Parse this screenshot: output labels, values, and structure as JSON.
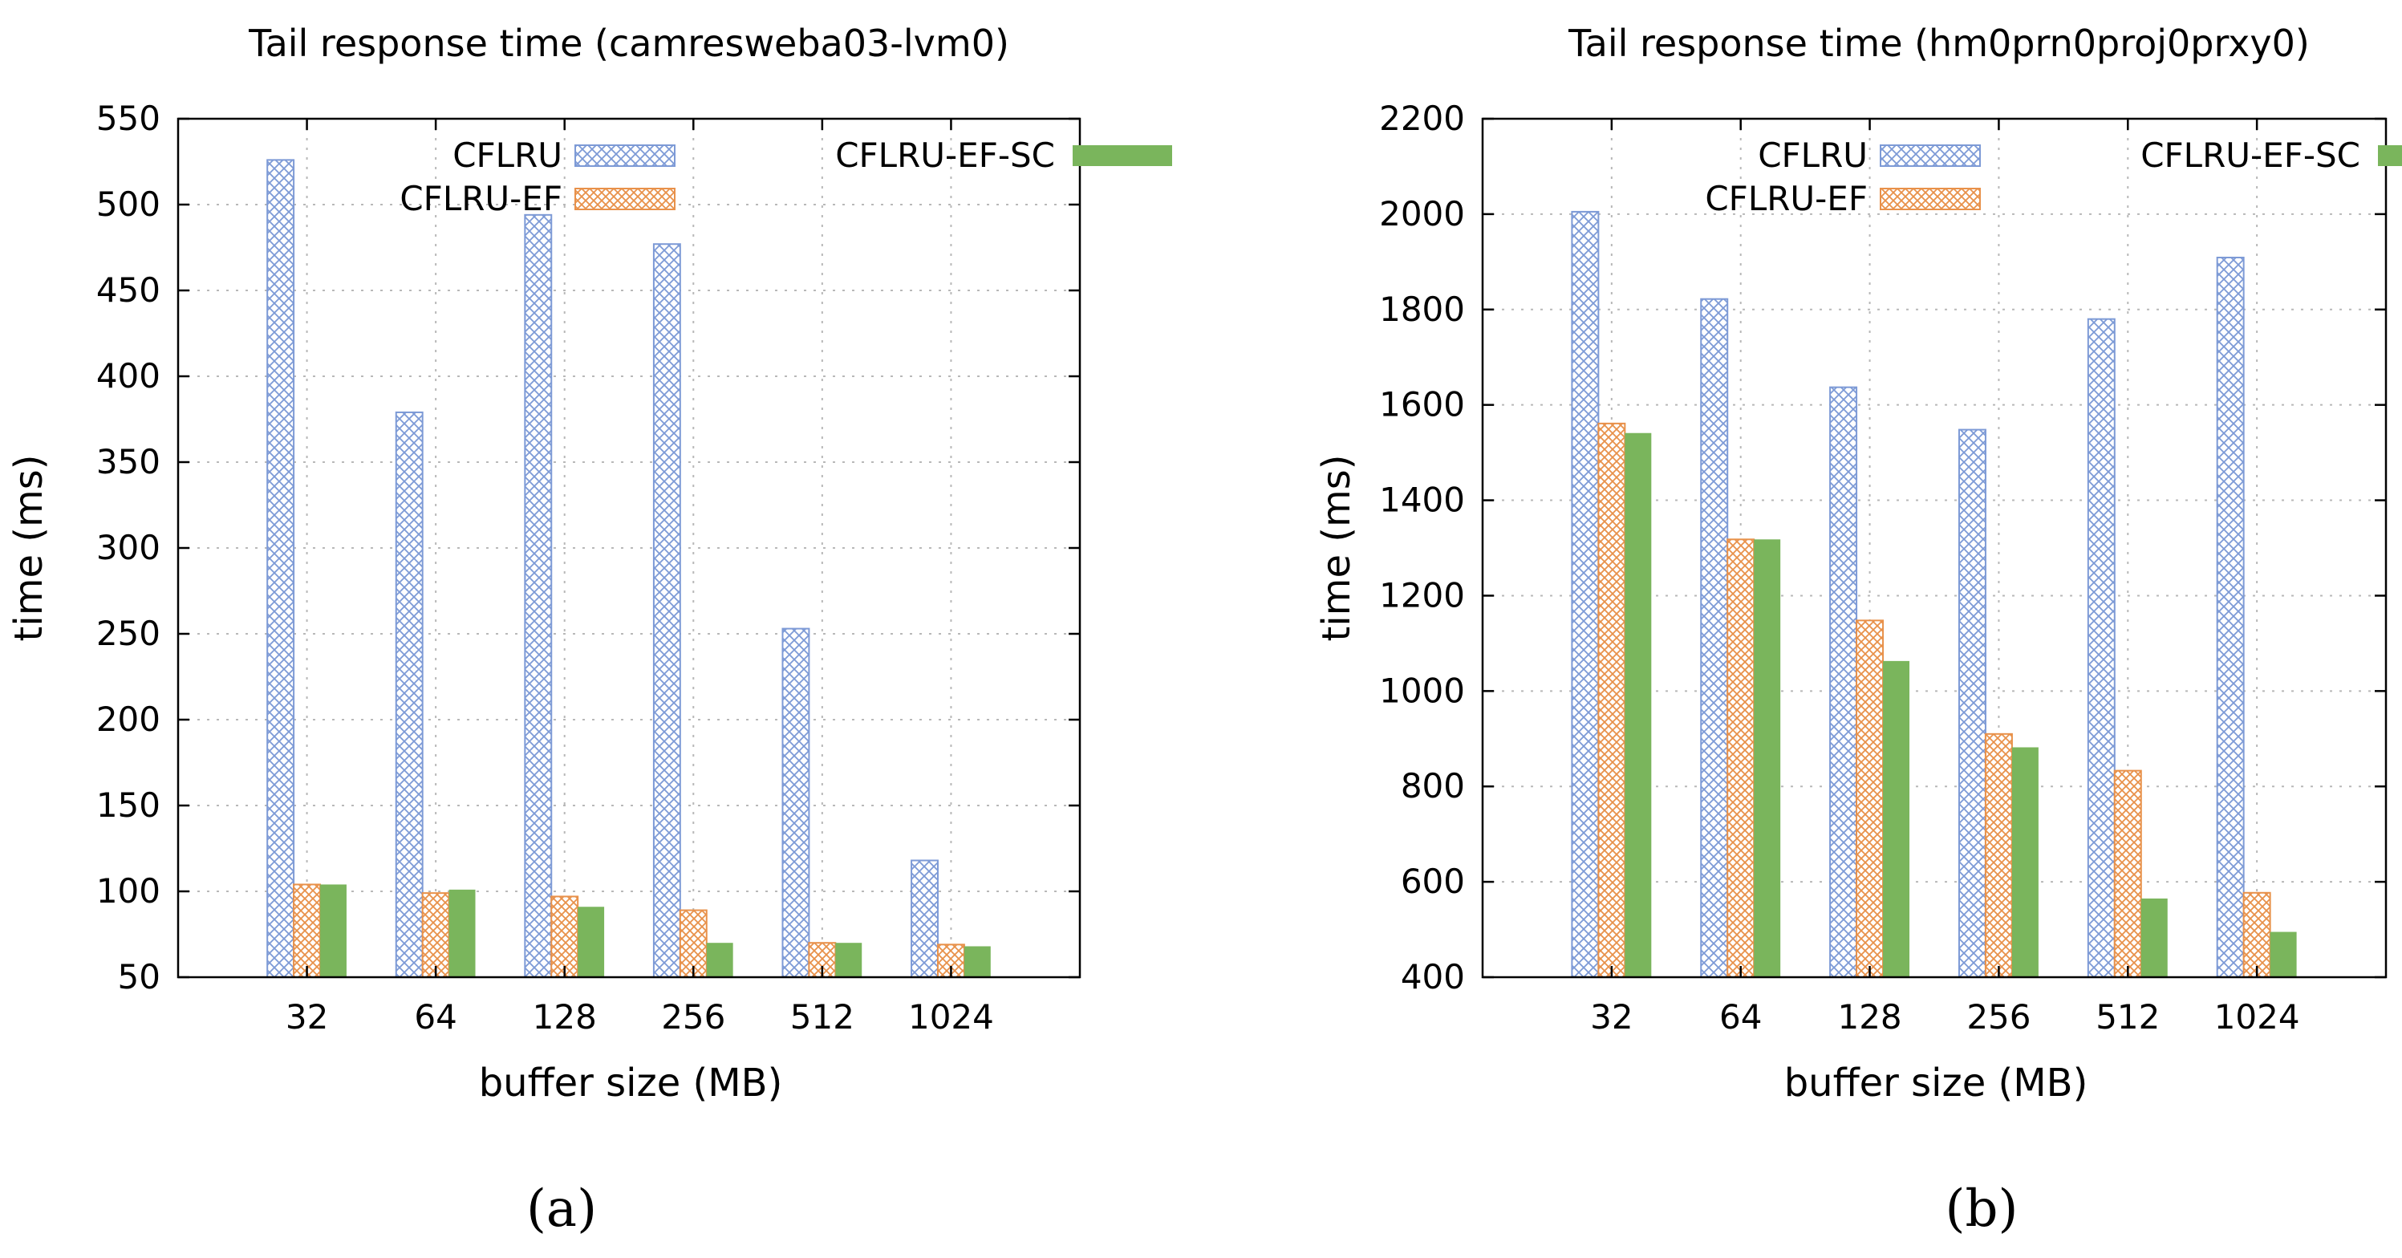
{
  "colors": {
    "CFLRU": "#7d9ad6",
    "CFLRU-EF": "#e8914a",
    "CFLRU-EF-SC": "#7ab55c"
  },
  "chart_data": [
    {
      "type": "bar",
      "title": "Tail response time (camresweba03-lvm0)",
      "xlabel": "buffer size (MB)",
      "ylabel": "time (ms)",
      "panel_label": "(a)",
      "categories": [
        "32",
        "64",
        "128",
        "256",
        "512",
        "1024"
      ],
      "ylim": [
        50,
        550
      ],
      "yticks": [
        50,
        100,
        150,
        200,
        250,
        300,
        350,
        400,
        450,
        500,
        550
      ],
      "grid": true,
      "legend_position": "top",
      "legend": [
        {
          "label": "CFLRU",
          "series": 0
        },
        {
          "label": "CFLRU-EF-SC",
          "series": 2
        },
        {
          "label": "CFLRU-EF",
          "series": 1
        }
      ],
      "series": [
        {
          "name": "CFLRU",
          "pattern": "crosshatch",
          "values": [
            526,
            379,
            494,
            477,
            253,
            118
          ]
        },
        {
          "name": "CFLRU-EF",
          "pattern": "crosshatch",
          "values": [
            104,
            99,
            97,
            89,
            70,
            69
          ]
        },
        {
          "name": "CFLRU-EF-SC",
          "pattern": "solid",
          "values": [
            104,
            101,
            91,
            70,
            70,
            68
          ]
        }
      ]
    },
    {
      "type": "bar",
      "title": "Tail response time (hm0prn0proj0prxy0)",
      "xlabel": "buffer size (MB)",
      "ylabel": "time (ms)",
      "panel_label": "(b)",
      "categories": [
        "32",
        "64",
        "128",
        "256",
        "512",
        "1024"
      ],
      "ylim": [
        400,
        2200
      ],
      "yticks": [
        400,
        600,
        800,
        1000,
        1200,
        1400,
        1600,
        1800,
        2000,
        2200
      ],
      "grid": true,
      "legend_position": "top",
      "legend": [
        {
          "label": "CFLRU",
          "series": 0
        },
        {
          "label": "CFLRU-EF-SC",
          "series": 2
        },
        {
          "label": "CFLRU-EF",
          "series": 1
        }
      ],
      "series": [
        {
          "name": "CFLRU",
          "pattern": "crosshatch",
          "values": [
            2005,
            1822,
            1637,
            1548,
            1780,
            1909
          ]
        },
        {
          "name": "CFLRU-EF",
          "pattern": "crosshatch",
          "values": [
            1561,
            1318,
            1148,
            910,
            833,
            577
          ]
        },
        {
          "name": "CFLRU-EF-SC",
          "pattern": "solid",
          "values": [
            1541,
            1318,
            1063,
            882,
            565,
            495
          ]
        }
      ]
    }
  ]
}
